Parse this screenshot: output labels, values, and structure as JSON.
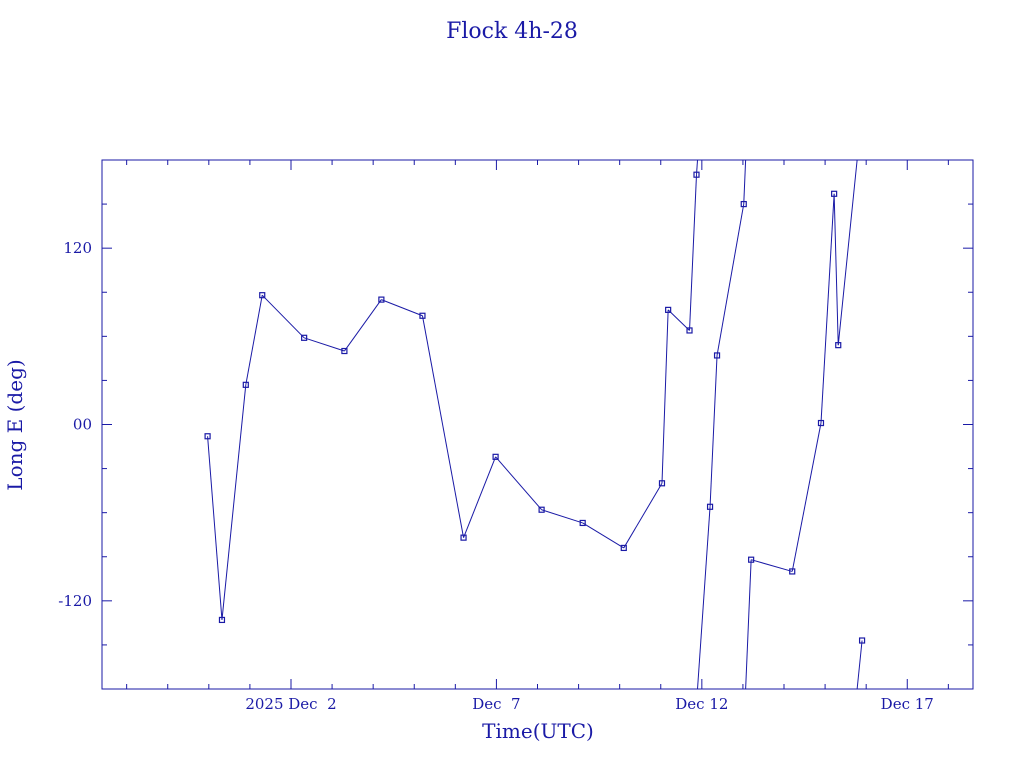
{
  "chart_data": {
    "type": "line",
    "title": "Flock 4h-28",
    "xlabel": "Time(UTC)",
    "ylabel": "Long E (deg)",
    "color": "#1a1aa6",
    "x_tick_labels": [
      "2025 Dec  2",
      "Dec  7",
      "Dec 12",
      "Dec 17"
    ],
    "x_tick_values": [
      2.0,
      7.0,
      12.0,
      17.0
    ],
    "xlim": [
      -2.6,
      18.6
    ],
    "y_tick_labels": [
      "120",
      "00",
      "-120"
    ],
    "y_tick_values": [
      120,
      0,
      -120
    ],
    "ylim": [
      -180,
      180
    ],
    "grid": false,
    "wrap": [
      -180,
      180
    ],
    "series": [
      {
        "points": [
          {
            "x": -0.03,
            "y": -8
          },
          {
            "x": 0.32,
            "y": -133
          },
          {
            "x": 0.9,
            "y": 27
          },
          {
            "x": 1.3,
            "y": 88
          },
          {
            "x": 2.32,
            "y": 59
          },
          {
            "x": 3.3,
            "y": 50
          },
          {
            "x": 4.2,
            "y": 85
          },
          {
            "x": 5.2,
            "y": 74
          },
          {
            "x": 6.2,
            "y": -77
          },
          {
            "x": 6.98,
            "y": -22
          },
          {
            "x": 8.1,
            "y": -58
          },
          {
            "x": 9.1,
            "y": -67
          },
          {
            "x": 10.1,
            "y": -84
          },
          {
            "x": 11.03,
            "y": -40
          },
          {
            "x": 11.18,
            "y": 78
          },
          {
            "x": 11.7,
            "y": 64
          },
          {
            "x": 11.87,
            "y": 170
          },
          {
            "x": 12.2,
            "y": -56
          },
          {
            "x": 12.37,
            "y": 47
          },
          {
            "x": 13.02,
            "y": 150
          },
          {
            "x": 13.2,
            "y": -92
          },
          {
            "x": 14.2,
            "y": -100
          },
          {
            "x": 14.9,
            "y": 1
          },
          {
            "x": 15.22,
            "y": 157
          },
          {
            "x": 15.32,
            "y": 54
          },
          {
            "x": 15.9,
            "y": -147
          }
        ]
      }
    ]
  }
}
